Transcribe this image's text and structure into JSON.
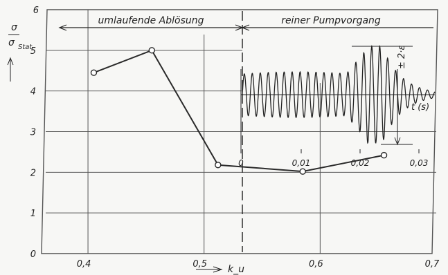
{
  "chart_data": {
    "type": "line",
    "xlabel": "k_u",
    "ylabel_num": "σ",
    "ylabel_den": "σ",
    "ylabel_den_sub": "Stat",
    "xlim": [
      0.36,
      0.7
    ],
    "ylim": [
      0,
      6
    ],
    "x_ticks": [
      "0,4",
      "0,5",
      "0,6",
      "0,7"
    ],
    "y_ticks": [
      "0",
      "1",
      "2",
      "3",
      "4",
      "5",
      "6"
    ],
    "region_left": "umlaufende Ablösung",
    "region_right": "reiner Pumpvorgang",
    "region_boundary_x": 0.533,
    "points": [
      {
        "x": 0.405,
        "y": 4.45
      },
      {
        "x": 0.455,
        "y": 5.0
      },
      {
        "x": 0.512,
        "y": 2.18
      },
      {
        "x": 0.585,
        "y": 2.02
      },
      {
        "x": 0.655,
        "y": 2.42
      }
    ],
    "inset": {
      "x_ticks": [
        "0",
        "0,01",
        "0,02",
        "0,03"
      ],
      "xlabel": "t (s)",
      "amplitude_label": "± 2·ε"
    }
  },
  "colors": {
    "line": "#2a2a2a",
    "grid": "#555555",
    "background": "#f7f7f5"
  }
}
